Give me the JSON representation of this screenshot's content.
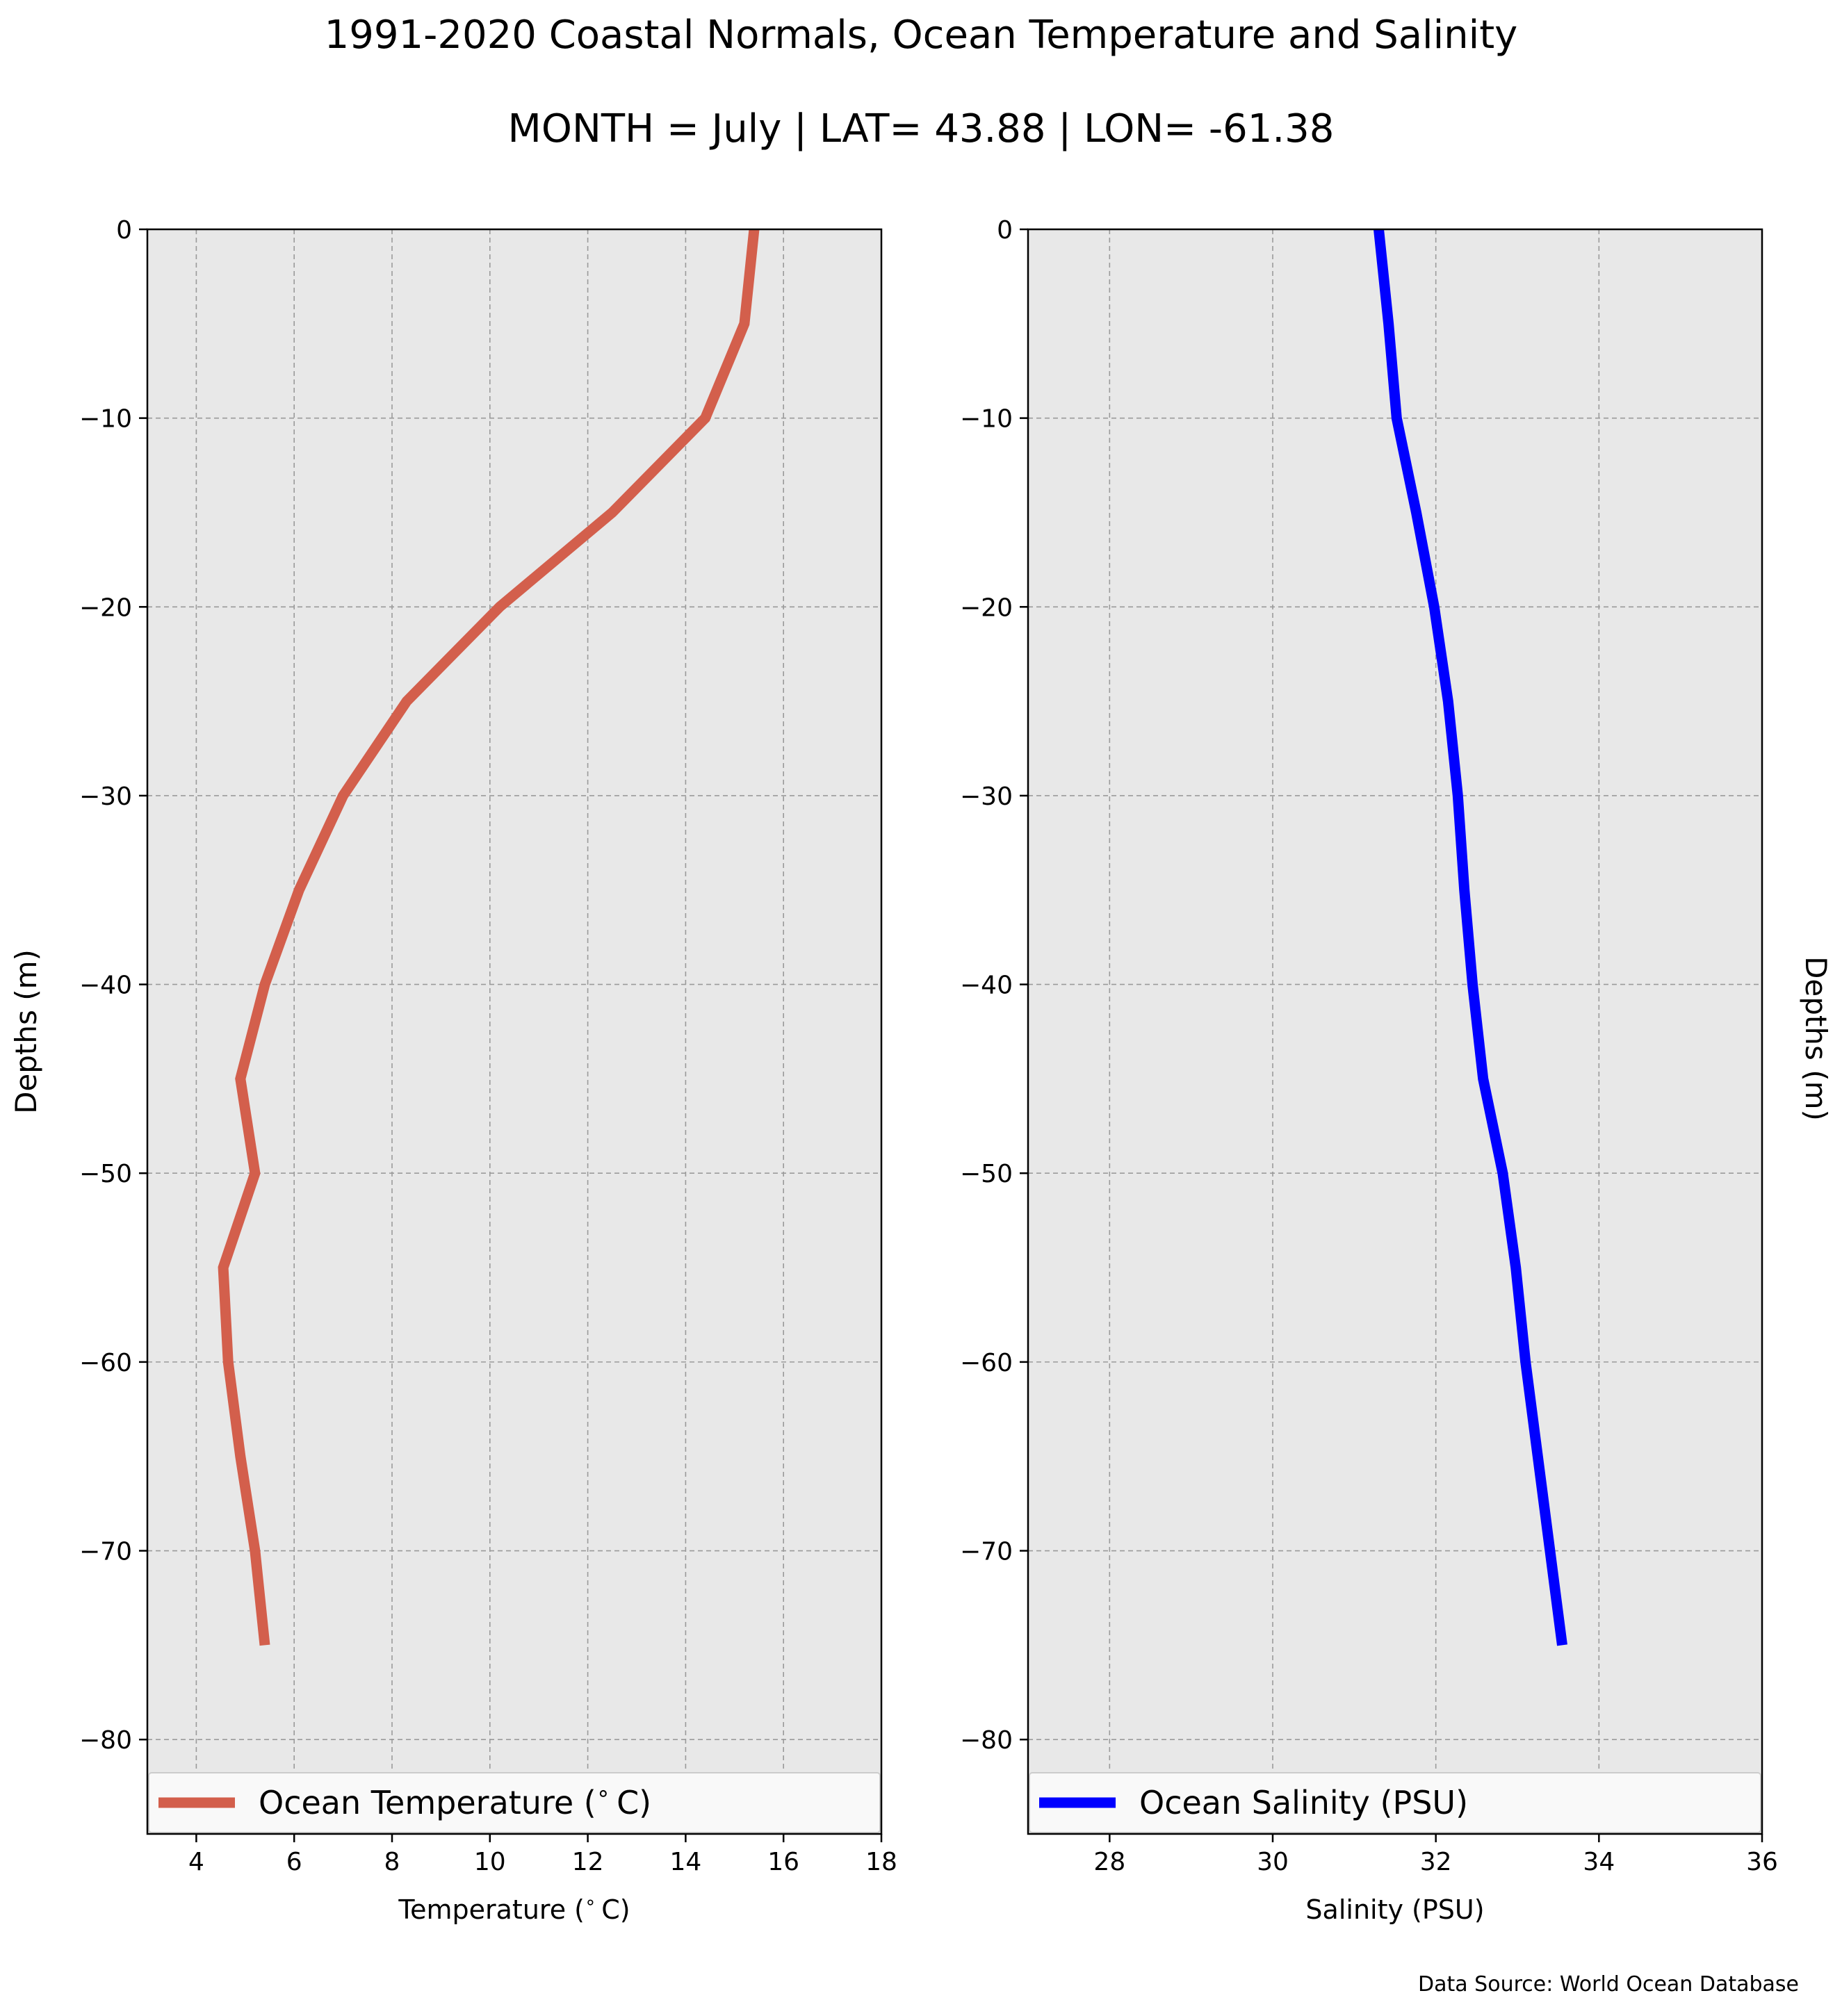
{
  "title_line1": "1991-2020 Coastal Normals, Ocean Temperature and Salinity",
  "title_line2": "MONTH = July | LAT= 43.88 | LON= -61.38",
  "source_note": "Data Source: World Ocean Database",
  "colors": {
    "background": "#e8e8e8",
    "grid": "#9a9a9a",
    "temperature": "#d35f4c",
    "salinity": "#0000ff"
  },
  "chart_data": [
    {
      "type": "line",
      "xlabel": "Temperature ($^\\circ$C)",
      "ylabel": "Depths (m)",
      "xlim": [
        3,
        18
      ],
      "ylim": [
        -85,
        0
      ],
      "xticks": [
        4,
        6,
        8,
        10,
        12,
        14,
        16,
        18
      ],
      "xtick_labels": [
        "4",
        "6",
        "8",
        "10",
        "12",
        "14",
        "16",
        "18"
      ],
      "yticks": [
        0,
        -10,
        -20,
        -30,
        -40,
        -50,
        -60,
        -70,
        -80
      ],
      "ytick_labels": [
        "0",
        "−10",
        "−20",
        "−30",
        "−40",
        "−50",
        "−60",
        "−70",
        "−80"
      ],
      "grid": true,
      "legend_position": "bottom",
      "series": [
        {
          "name": "Ocean Temperature ($^\\circ$C)",
          "color": "#d35f4c",
          "x": [
            15.4,
            15.2,
            14.4,
            12.5,
            10.2,
            8.3,
            7.0,
            6.1,
            5.4,
            4.9,
            5.2,
            4.55,
            4.65,
            4.9,
            5.2,
            5.4
          ],
          "y": [
            0,
            -5,
            -10,
            -15,
            -20,
            -25,
            -30,
            -35,
            -40,
            -45,
            -50,
            -55,
            -60,
            -65,
            -70,
            -75
          ]
        }
      ]
    },
    {
      "type": "line",
      "xlabel": "Salinity (PSU)",
      "ylabel": "Depths (m)",
      "xlim": [
        27,
        36
      ],
      "ylim": [
        -85,
        0
      ],
      "xticks": [
        28,
        30,
        32,
        34,
        36
      ],
      "xtick_labels": [
        "28",
        "30",
        "32",
        "34",
        "36"
      ],
      "yticks": [
        0,
        -10,
        -20,
        -30,
        -40,
        -50,
        -60,
        -70,
        -80
      ],
      "ytick_labels": [
        "0",
        "−10",
        "−20",
        "−30",
        "−40",
        "−50",
        "−60",
        "−70",
        "−80"
      ],
      "grid": true,
      "legend_position": "bottom",
      "series": [
        {
          "name": "Ocean Salinity (PSU)",
          "color": "#0000ff",
          "x": [
            31.3,
            31.42,
            31.52,
            31.76,
            31.98,
            32.15,
            32.27,
            32.35,
            32.45,
            32.58,
            32.82,
            32.98,
            33.1,
            33.25,
            33.4,
            33.55
          ],
          "y": [
            0,
            -5,
            -10,
            -15,
            -20,
            -25,
            -30,
            -35,
            -40,
            -45,
            -50,
            -55,
            -60,
            -65,
            -70,
            -75
          ]
        }
      ]
    }
  ]
}
